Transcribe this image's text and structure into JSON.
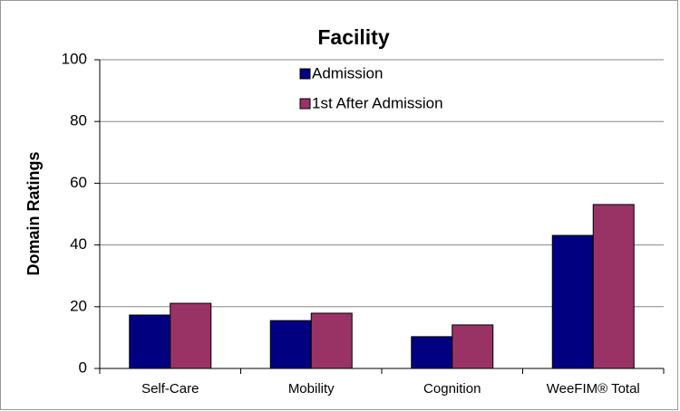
{
  "chart_data": {
    "type": "bar",
    "title": "Facility",
    "y_label": "Domain Ratings",
    "categories": [
      "Self-Care",
      "Mobility",
      "Cognition",
      "WeeFIM® Total"
    ],
    "series": [
      {
        "name": "Admission",
        "color": "#000080",
        "values": [
          17.3,
          15.5,
          10.3,
          43.1
        ]
      },
      {
        "name": "1st After Admission",
        "color": "#993366",
        "values": [
          21.1,
          17.9,
          14.1,
          53.1
        ]
      }
    ],
    "ylim": [
      0,
      100
    ],
    "yticks": [
      0,
      20,
      40,
      60,
      80,
      100
    ],
    "grid": true,
    "legend": "top"
  }
}
